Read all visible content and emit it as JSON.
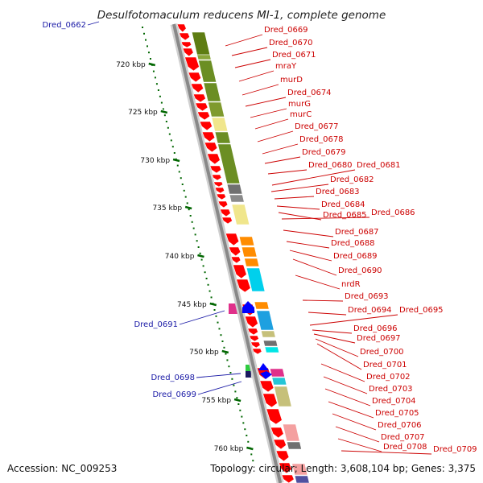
{
  "title": "Desulfotomaculum reducens MI-1, complete genome",
  "accession": "Accession: NC_009253",
  "topology": "Topology: circular; Length: 3,608,104 bp; Genes: 3,375",
  "colors": {
    "forward_gene": "#ff0000",
    "reverse_gene": "#0000ff",
    "axis": "#888888",
    "tick": "#006600",
    "label_red": "#cc0000",
    "label_blue": "#1a1aa6"
  },
  "ticks": [
    {
      "label": "720 kbp"
    },
    {
      "label": "725 kbp"
    },
    {
      "label": "730 kbp"
    },
    {
      "label": "735 kbp"
    },
    {
      "label": "740 kbp"
    },
    {
      "label": "745 kbp"
    },
    {
      "label": "750 kbp"
    },
    {
      "label": "755 kbp"
    },
    {
      "label": "760 kbp"
    }
  ],
  "blue_labels": [
    "Dred_0662",
    "Dred_0691",
    "Dred_0698",
    "Dred_0699"
  ],
  "red_labels": [
    "Dred_0669",
    "Dred_0670",
    "Dred_0671",
    "mraY",
    "murD",
    "Dred_0674",
    "murG",
    "murC",
    "Dred_0677",
    "Dred_0678",
    "Dred_0679",
    "Dred_0680",
    "Dred_0681",
    "Dred_0682",
    "Dred_0683",
    "Dred_0684",
    "Dred_0685",
    "Dred_0686",
    "Dred_0687",
    "Dred_0688",
    "Dred_0689",
    "Dred_0690",
    "nrdR",
    "Dred_0693",
    "Dred_0694",
    "Dred_0695",
    "Dred_0696",
    "Dred_0697",
    "Dred_0700",
    "Dred_0701",
    "Dred_0702",
    "Dred_0703",
    "Dred_0704",
    "Dred_0705",
    "Dred_0706",
    "Dred_0707",
    "Dred_0708",
    "Dred_0709"
  ]
}
